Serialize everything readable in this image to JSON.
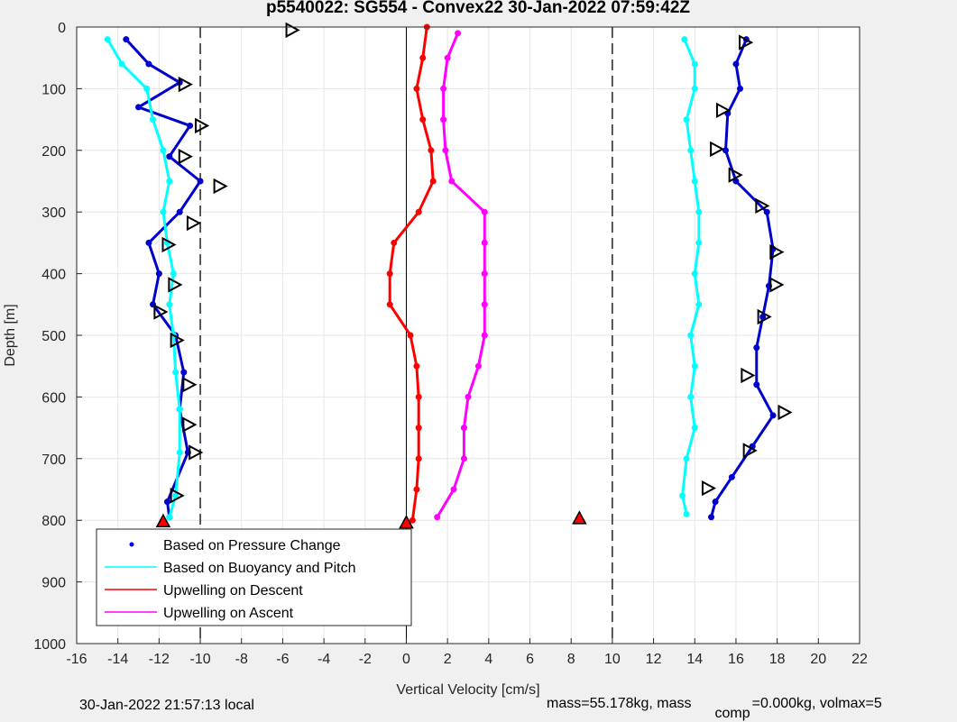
{
  "chart_data": {
    "type": "scatter",
    "title": "p5540022: SG554 - Convex22 30-Jan-2022 07:59:42Z",
    "xlabel": "Vertical Velocity [cm/s]",
    "ylabel": "Depth [m]",
    "xlim": [
      -16,
      22
    ],
    "ylim": [
      0,
      1000
    ],
    "y_reversed": true,
    "grid": true,
    "x_ticks": [
      "-16",
      "-14",
      "-12",
      "-10",
      "-8",
      "-6",
      "-4",
      "-2",
      "0",
      "2",
      "4",
      "6",
      "8",
      "10",
      "12",
      "14",
      "16",
      "18",
      "20",
      "22"
    ],
    "y_ticks": [
      "0",
      "100",
      "200",
      "300",
      "400",
      "500",
      "600",
      "700",
      "800",
      "900",
      "1000"
    ],
    "legend_position": "bottom-left",
    "legend": [
      {
        "label": "Based on Pressure Change",
        "color": "#0000ff",
        "style": "dot"
      },
      {
        "label": "Based on Buoyancy and Pitch",
        "color": "#00ffff",
        "style": "line"
      },
      {
        "label": "Upwelling on Descent",
        "color": "#ff0000",
        "style": "line"
      },
      {
        "label": "Upwelling on Ascent",
        "color": "#ff00ff",
        "style": "line"
      }
    ],
    "series": [
      {
        "role": "pressure-descent",
        "color": "#0000cd",
        "points": [
          [
            -13.6,
            20
          ],
          [
            -12.5,
            60
          ],
          [
            -11.0,
            90
          ],
          [
            -13.0,
            130
          ],
          [
            -10.5,
            160
          ],
          [
            -11.5,
            210
          ],
          [
            -10.0,
            250
          ],
          [
            -11.0,
            300
          ],
          [
            -12.5,
            350
          ],
          [
            -12.0,
            400
          ],
          [
            -12.3,
            450
          ],
          [
            -11.2,
            500
          ],
          [
            -10.8,
            560
          ],
          [
            -11.0,
            620
          ],
          [
            -10.6,
            690
          ],
          [
            -11.6,
            770
          ],
          [
            -11.5,
            795
          ]
        ]
      },
      {
        "role": "buoyancy-descent",
        "color": "#00ffff",
        "points": [
          [
            -14.5,
            20
          ],
          [
            -13.8,
            60
          ],
          [
            -12.6,
            100
          ],
          [
            -12.3,
            150
          ],
          [
            -11.8,
            200
          ],
          [
            -11.5,
            250
          ],
          [
            -11.8,
            300
          ],
          [
            -11.6,
            350
          ],
          [
            -11.3,
            400
          ],
          [
            -11.5,
            450
          ],
          [
            -11.3,
            500
          ],
          [
            -11.2,
            560
          ],
          [
            -11.0,
            620
          ],
          [
            -11.0,
            690
          ],
          [
            -11.2,
            760
          ],
          [
            -11.5,
            795
          ]
        ]
      },
      {
        "role": "pressure-ascent",
        "color": "#0000cd",
        "points": [
          [
            16.5,
            20
          ],
          [
            16.0,
            60
          ],
          [
            16.2,
            100
          ],
          [
            15.6,
            140
          ],
          [
            15.5,
            200
          ],
          [
            16.0,
            250
          ],
          [
            17.5,
            300
          ],
          [
            17.8,
            360
          ],
          [
            17.6,
            420
          ],
          [
            17.3,
            470
          ],
          [
            17.0,
            520
          ],
          [
            17.0,
            580
          ],
          [
            17.8,
            630
          ],
          [
            16.8,
            680
          ],
          [
            15.8,
            730
          ],
          [
            15.0,
            770
          ],
          [
            14.8,
            795
          ]
        ]
      },
      {
        "role": "buoyancy-ascent",
        "color": "#00ffff",
        "points": [
          [
            13.5,
            20
          ],
          [
            14.0,
            60
          ],
          [
            14.0,
            100
          ],
          [
            13.6,
            150
          ],
          [
            13.8,
            200
          ],
          [
            14.0,
            250
          ],
          [
            14.2,
            300
          ],
          [
            14.2,
            350
          ],
          [
            14.0,
            400
          ],
          [
            14.2,
            450
          ],
          [
            13.8,
            500
          ],
          [
            14.0,
            550
          ],
          [
            13.8,
            600
          ],
          [
            14.0,
            650
          ],
          [
            13.6,
            700
          ],
          [
            13.4,
            760
          ],
          [
            13.6,
            790
          ]
        ]
      },
      {
        "role": "upwelling-descent",
        "color": "#ff0000",
        "points": [
          [
            1.0,
            0
          ],
          [
            0.8,
            50
          ],
          [
            0.5,
            100
          ],
          [
            0.8,
            150
          ],
          [
            1.2,
            200
          ],
          [
            1.3,
            250
          ],
          [
            0.6,
            300
          ],
          [
            -0.6,
            350
          ],
          [
            -0.8,
            400
          ],
          [
            -0.8,
            450
          ],
          [
            0.2,
            500
          ],
          [
            0.5,
            550
          ],
          [
            0.6,
            600
          ],
          [
            0.6,
            650
          ],
          [
            0.6,
            700
          ],
          [
            0.5,
            750
          ],
          [
            0.3,
            800
          ]
        ]
      },
      {
        "role": "upwelling-ascent",
        "color": "#ff00ff",
        "points": [
          [
            2.5,
            10
          ],
          [
            2.0,
            50
          ],
          [
            1.8,
            100
          ],
          [
            1.8,
            150
          ],
          [
            1.9,
            200
          ],
          [
            2.2,
            250
          ],
          [
            3.8,
            300
          ],
          [
            3.8,
            350
          ],
          [
            3.8,
            400
          ],
          [
            3.8,
            450
          ],
          [
            3.8,
            500
          ],
          [
            3.5,
            550
          ],
          [
            3.0,
            600
          ],
          [
            2.8,
            650
          ],
          [
            2.8,
            700
          ],
          [
            2.3,
            750
          ],
          [
            1.5,
            795
          ]
        ]
      }
    ],
    "markers": [
      {
        "shape": "triangle-right",
        "points": [
          [
            -5.6,
            5
          ],
          [
            -10.8,
            93
          ],
          [
            -10.0,
            160
          ],
          [
            -10.8,
            210
          ],
          [
            -9.1,
            258
          ],
          [
            -10.4,
            318
          ],
          [
            -11.6,
            353
          ],
          [
            -11.3,
            418
          ],
          [
            -12.0,
            462
          ],
          [
            -11.2,
            508
          ],
          [
            -10.6,
            580
          ],
          [
            -10.6,
            645
          ],
          [
            -10.3,
            690
          ],
          [
            -11.2,
            760
          ],
          [
            16.4,
            25
          ],
          [
            15.3,
            135
          ],
          [
            15.0,
            198
          ],
          [
            15.9,
            240
          ],
          [
            17.2,
            290
          ],
          [
            17.9,
            365
          ],
          [
            17.9,
            418
          ],
          [
            17.3,
            470
          ],
          [
            16.5,
            565
          ],
          [
            18.3,
            625
          ],
          [
            16.6,
            687
          ],
          [
            14.6,
            748
          ]
        ]
      },
      {
        "shape": "triangle-up-red",
        "points": [
          [
            -11.8,
            803
          ],
          [
            0.0,
            805
          ],
          [
            8.4,
            798
          ]
        ]
      }
    ],
    "dashed_vlines": [
      -10,
      10
    ],
    "solid_vlines": [
      0
    ]
  },
  "footer": {
    "local_time": "30-Jan-2022 21:57:13 local",
    "mass_text": "mass=55.178kg, mass",
    "comp_sub": "comp",
    "rest_text": "=0.000kg, volmax=5"
  }
}
